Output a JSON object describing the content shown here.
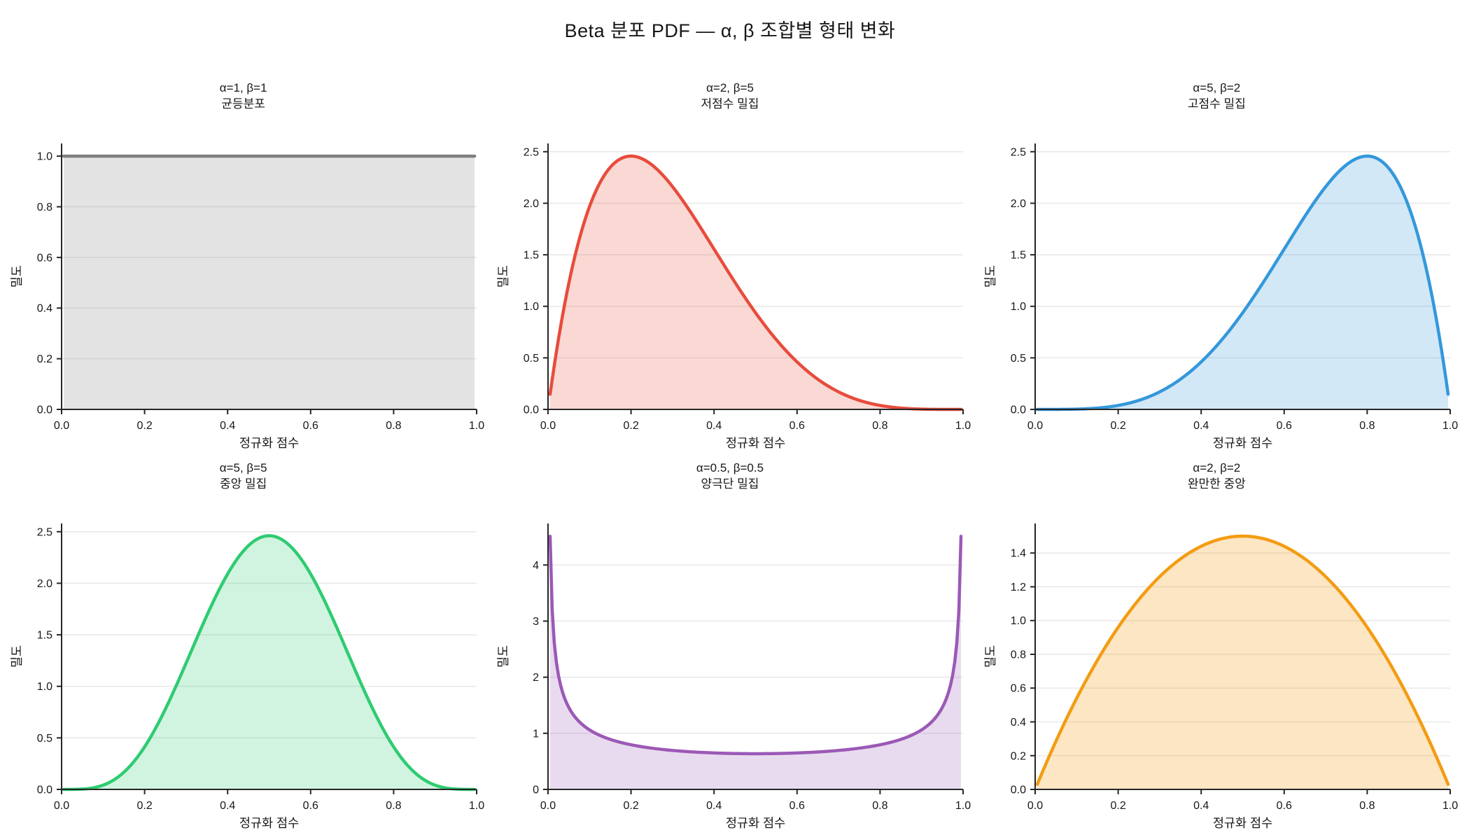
{
  "page_title": "Beta 분포 PDF — α, β 조합별 형태 변화",
  "axis": {
    "xlabel": "정규화 점수",
    "ylabel": "밀도"
  },
  "chart_data": [
    {
      "type": "area",
      "distribution": "beta-pdf",
      "alpha": 1,
      "beta": 1,
      "title_line1": "α=1, β=1",
      "title_line2": "균등분포",
      "xlabel": "정규화 점수",
      "ylabel": "밀도",
      "color": "#7f7f7f",
      "fill_opacity": 0.22,
      "xlim": [
        0,
        1
      ],
      "ylim": [
        0,
        1.05
      ],
      "x_ticks": [
        0,
        0.2,
        0.4,
        0.6,
        0.8,
        1.0
      ],
      "x_tick_labels": [
        "0.0",
        "0.2",
        "0.4",
        "0.6",
        "0.8",
        "1.0"
      ],
      "y_ticks": [
        0,
        0.2,
        0.4,
        0.6,
        0.8,
        1.0
      ],
      "y_tick_labels": [
        "0.0",
        "0.2",
        "0.4",
        "0.6",
        "0.8",
        "1.0"
      ],
      "sample_x": [
        0,
        0.1,
        0.2,
        0.3,
        0.4,
        0.5,
        0.6,
        0.7,
        0.8,
        0.9,
        1.0
      ],
      "sample_y": [
        1,
        1,
        1,
        1,
        1,
        1,
        1,
        1,
        1,
        1,
        1
      ]
    },
    {
      "type": "area",
      "distribution": "beta-pdf",
      "alpha": 2,
      "beta": 5,
      "title_line1": "α=2, β=5",
      "title_line2": "저점수 밀집",
      "xlabel": "정규화 점수",
      "ylabel": "밀도",
      "color": "#e74c3c",
      "fill_opacity": 0.22,
      "xlim": [
        0,
        1
      ],
      "ylim": [
        0,
        2.58
      ],
      "x_ticks": [
        0,
        0.2,
        0.4,
        0.6,
        0.8,
        1.0
      ],
      "x_tick_labels": [
        "0.0",
        "0.2",
        "0.4",
        "0.6",
        "0.8",
        "1.0"
      ],
      "y_ticks": [
        0,
        0.5,
        1.0,
        1.5,
        2.0,
        2.5
      ],
      "y_tick_labels": [
        "0.0",
        "0.5",
        "1.0",
        "1.5",
        "2.0",
        "2.5"
      ],
      "sample_x": [
        0,
        0.1,
        0.2,
        0.3,
        0.4,
        0.5,
        0.6,
        0.7,
        0.8,
        0.9,
        1.0
      ],
      "sample_y": [
        0,
        1.968,
        2.458,
        2.161,
        1.555,
        0.938,
        0.461,
        0.17,
        0.038,
        0.003,
        0
      ]
    },
    {
      "type": "area",
      "distribution": "beta-pdf",
      "alpha": 5,
      "beta": 2,
      "title_line1": "α=5, β=2",
      "title_line2": "고점수 밀집",
      "xlabel": "정규화 점수",
      "ylabel": "밀도",
      "color": "#3498db",
      "fill_opacity": 0.22,
      "xlim": [
        0,
        1
      ],
      "ylim": [
        0,
        2.58
      ],
      "x_ticks": [
        0,
        0.2,
        0.4,
        0.6,
        0.8,
        1.0
      ],
      "x_tick_labels": [
        "0.0",
        "0.2",
        "0.4",
        "0.6",
        "0.8",
        "1.0"
      ],
      "y_ticks": [
        0,
        0.5,
        1.0,
        1.5,
        2.0,
        2.5
      ],
      "y_tick_labels": [
        "0.0",
        "0.5",
        "1.0",
        "1.5",
        "2.0",
        "2.5"
      ],
      "sample_x": [
        0,
        0.1,
        0.2,
        0.3,
        0.4,
        0.5,
        0.6,
        0.7,
        0.8,
        0.9,
        1.0
      ],
      "sample_y": [
        0,
        0.003,
        0.038,
        0.17,
        0.461,
        0.938,
        1.555,
        2.161,
        2.458,
        1.968,
        0
      ]
    },
    {
      "type": "area",
      "distribution": "beta-pdf",
      "alpha": 5,
      "beta": 5,
      "title_line1": "α=5, β=5",
      "title_line2": "중앙 밀집",
      "xlabel": "정규화 점수",
      "ylabel": "밀도",
      "color": "#2ecc71",
      "fill_opacity": 0.22,
      "xlim": [
        0,
        1
      ],
      "ylim": [
        0,
        2.58
      ],
      "x_ticks": [
        0,
        0.2,
        0.4,
        0.6,
        0.8,
        1.0
      ],
      "x_tick_labels": [
        "0.0",
        "0.2",
        "0.4",
        "0.6",
        "0.8",
        "1.0"
      ],
      "y_ticks": [
        0,
        0.5,
        1.0,
        1.5,
        2.0,
        2.5
      ],
      "y_tick_labels": [
        "0.0",
        "0.5",
        "1.0",
        "1.5",
        "2.0",
        "2.5"
      ],
      "sample_x": [
        0,
        0.1,
        0.2,
        0.3,
        0.4,
        0.5,
        0.6,
        0.7,
        0.8,
        0.9,
        1.0
      ],
      "sample_y": [
        0,
        0.041,
        0.413,
        1.225,
        2.09,
        2.461,
        2.09,
        1.225,
        0.413,
        0.041,
        0
      ]
    },
    {
      "type": "area",
      "distribution": "beta-pdf",
      "alpha": 0.5,
      "beta": 0.5,
      "title_line1": "α=0.5, β=0.5",
      "title_line2": "양극단 밀집",
      "xlabel": "정규화 점수",
      "ylabel": "밀도",
      "color": "#9b59b6",
      "fill_opacity": 0.22,
      "xlim": [
        0,
        1
      ],
      "ylim": [
        0,
        4.74
      ],
      "x_ticks": [
        0,
        0.2,
        0.4,
        0.6,
        0.8,
        1.0
      ],
      "x_tick_labels": [
        "0.0",
        "0.2",
        "0.4",
        "0.6",
        "0.8",
        "1.0"
      ],
      "y_ticks": [
        0,
        1,
        2,
        3,
        4
      ],
      "y_tick_labels": [
        "0",
        "1",
        "2",
        "3",
        "4"
      ],
      "sample_x": [
        0,
        0.1,
        0.2,
        0.3,
        0.4,
        0.5,
        0.6,
        0.7,
        0.8,
        0.9,
        1.0
      ],
      "sample_y": [
        null,
        1.061,
        0.796,
        0.695,
        0.65,
        0.637,
        0.65,
        0.695,
        0.796,
        1.061,
        null
      ],
      "endpoints_diverge": true
    },
    {
      "type": "area",
      "distribution": "beta-pdf",
      "alpha": 2,
      "beta": 2,
      "title_line1": "α=2, β=2",
      "title_line2": "완만한 중앙",
      "xlabel": "정규화 점수",
      "ylabel": "밀도",
      "color": "#f39c12",
      "fill_opacity": 0.25,
      "xlim": [
        0,
        1
      ],
      "ylim": [
        0,
        1.575
      ],
      "x_ticks": [
        0,
        0.2,
        0.4,
        0.6,
        0.8,
        1.0
      ],
      "x_tick_labels": [
        "0.0",
        "0.2",
        "0.4",
        "0.6",
        "0.8",
        "1.0"
      ],
      "y_ticks": [
        0,
        0.2,
        0.4,
        0.6,
        0.8,
        1.0,
        1.2,
        1.4
      ],
      "y_tick_labels": [
        "0.0",
        "0.2",
        "0.4",
        "0.6",
        "0.8",
        "1.0",
        "1.2",
        "1.4"
      ],
      "sample_x": [
        0,
        0.1,
        0.2,
        0.3,
        0.4,
        0.5,
        0.6,
        0.7,
        0.8,
        0.9,
        1.0
      ],
      "sample_y": [
        0,
        0.54,
        0.96,
        1.26,
        1.44,
        1.5,
        1.44,
        1.26,
        0.96,
        0.54,
        0
      ]
    }
  ]
}
